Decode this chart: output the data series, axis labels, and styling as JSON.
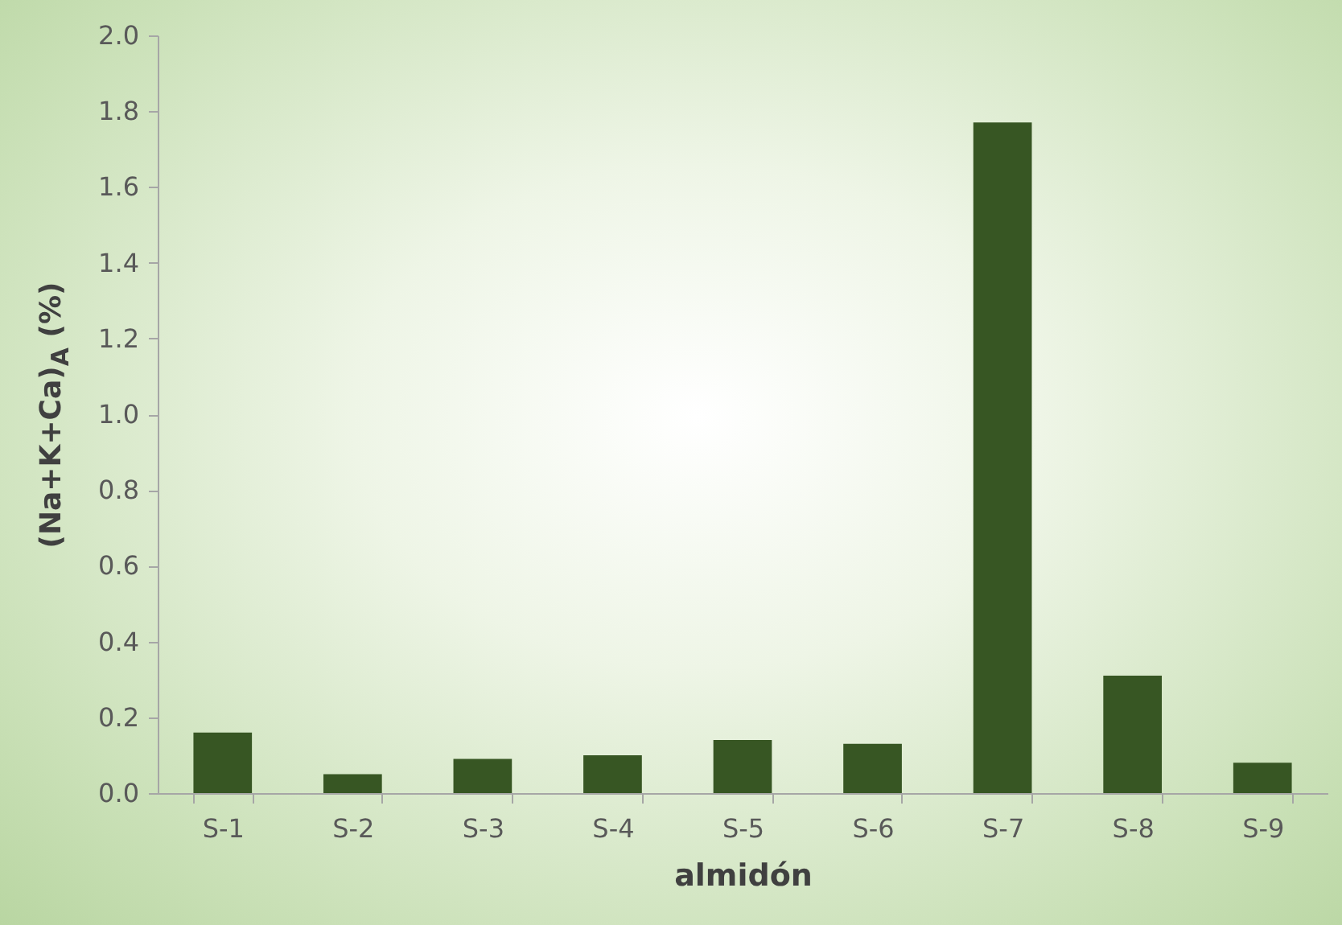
{
  "chart_data": {
    "type": "bar",
    "xlabel": "almidón",
    "ylabel": "(Na+K+Ca)$_{A}$ (%)",
    "categories": [
      "S-1",
      "S-2",
      "S-3",
      "S-4",
      "S-5",
      "S-6",
      "S-7",
      "S-8",
      "S-9"
    ],
    "values": [
      0.16,
      0.05,
      0.09,
      0.1,
      0.14,
      0.13,
      1.77,
      0.31,
      0.08
    ],
    "color": "#375623",
    "ylim": [
      0,
      2.0
    ],
    "yticks": [
      {
        "value": 0,
        "label": "0.0"
      },
      {
        "value": 0.2,
        "label": "0.2"
      },
      {
        "value": 0.4,
        "label": "0.4"
      },
      {
        "value": 0.6,
        "label": "0.6"
      },
      {
        "value": 0.8,
        "label": "0.8"
      },
      {
        "value": 1.0,
        "label": "1.0"
      },
      {
        "value": 1.2,
        "label": "1.2"
      },
      {
        "value": 1.4,
        "label": "1.4"
      },
      {
        "value": 1.6,
        "label": "1.6"
      },
      {
        "value": 1.8,
        "label": "1.8"
      },
      {
        "value": 2.0,
        "label": "2.0"
      }
    ],
    "grid": false
  }
}
